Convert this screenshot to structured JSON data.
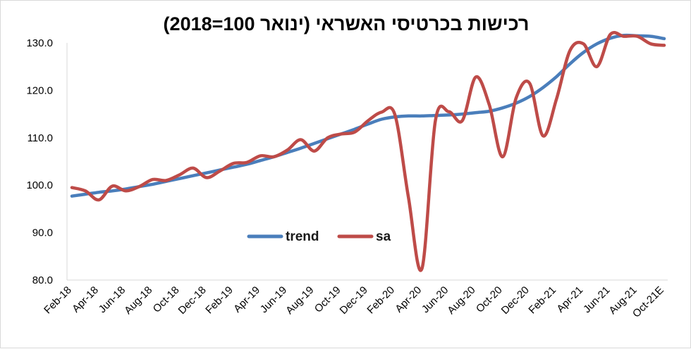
{
  "chart_data": {
    "type": "line",
    "title": "רכישות בכרטיסי האשראי (ינואר 100=2018)",
    "xlabel": "",
    "ylabel": "",
    "ylim": [
      80,
      130
    ],
    "yticks": [
      "80.0",
      "90.0",
      "100.0",
      "110.0",
      "120.0",
      "130.0"
    ],
    "grid": false,
    "legend_position": "bottom-center",
    "x_tick_labels": [
      "Feb-18",
      "Apr-18",
      "Jun-18",
      "Aug-18",
      "Oct-18",
      "Dec-18",
      "Feb-19",
      "Apr-19",
      "Jun-19",
      "Aug-19",
      "Oct-19",
      "Dec-19",
      "Feb-20",
      "Apr-20",
      "Jun-20",
      "Aug-20",
      "Oct-20",
      "Dec-20",
      "Feb-21",
      "Apr-21",
      "Jun-21",
      "Aug-21",
      "Oct-21E"
    ],
    "x": [
      "Feb-18",
      "Mar-18",
      "Apr-18",
      "May-18",
      "Jun-18",
      "Jul-18",
      "Aug-18",
      "Sep-18",
      "Oct-18",
      "Nov-18",
      "Dec-18",
      "Jan-19",
      "Feb-19",
      "Mar-19",
      "Apr-19",
      "May-19",
      "Jun-19",
      "Jul-19",
      "Aug-19",
      "Sep-19",
      "Oct-19",
      "Nov-19",
      "Dec-19",
      "Jan-20",
      "Feb-20",
      "Mar-20",
      "Apr-20",
      "May-20",
      "Jun-20",
      "Jul-20",
      "Aug-20",
      "Sep-20",
      "Oct-20",
      "Nov-20",
      "Dec-20",
      "Jan-21",
      "Feb-21",
      "Mar-21",
      "Apr-21",
      "May-21",
      "Jun-21",
      "Jul-21",
      "Aug-21",
      "Sep-21",
      "Oct-21E"
    ],
    "series": [
      {
        "name": "trend",
        "color": "#4a7ebb",
        "values": [
          97.7,
          98.1,
          98.5,
          98.8,
          99.2,
          99.7,
          100.2,
          100.8,
          101.4,
          102.0,
          102.6,
          103.2,
          103.8,
          104.4,
          105.2,
          106.0,
          106.9,
          107.8,
          108.8,
          109.8,
          110.8,
          111.8,
          112.9,
          113.9,
          114.4,
          114.6,
          114.6,
          114.7,
          114.8,
          115.0,
          115.3,
          115.6,
          116.3,
          117.3,
          118.7,
          120.6,
          122.9,
          125.6,
          128.0,
          129.8,
          131.0,
          131.6,
          131.5,
          131.4,
          130.9
        ]
      },
      {
        "name": "sa",
        "color": "#be4b48",
        "values": [
          99.5,
          98.8,
          96.9,
          99.8,
          98.8,
          99.7,
          101.2,
          101.0,
          102.2,
          103.6,
          101.6,
          103.0,
          104.6,
          104.8,
          106.2,
          106.0,
          107.4,
          109.6,
          107.2,
          110.0,
          110.8,
          111.2,
          113.6,
          115.4,
          114.8,
          97.4,
          82.4,
          113.6,
          115.5,
          113.6,
          122.8,
          117.0,
          106.0,
          118.4,
          121.5,
          110.4,
          118.2,
          128.4,
          129.8,
          125.0,
          131.8,
          131.4,
          131.4,
          129.8,
          129.5
        ]
      }
    ]
  }
}
